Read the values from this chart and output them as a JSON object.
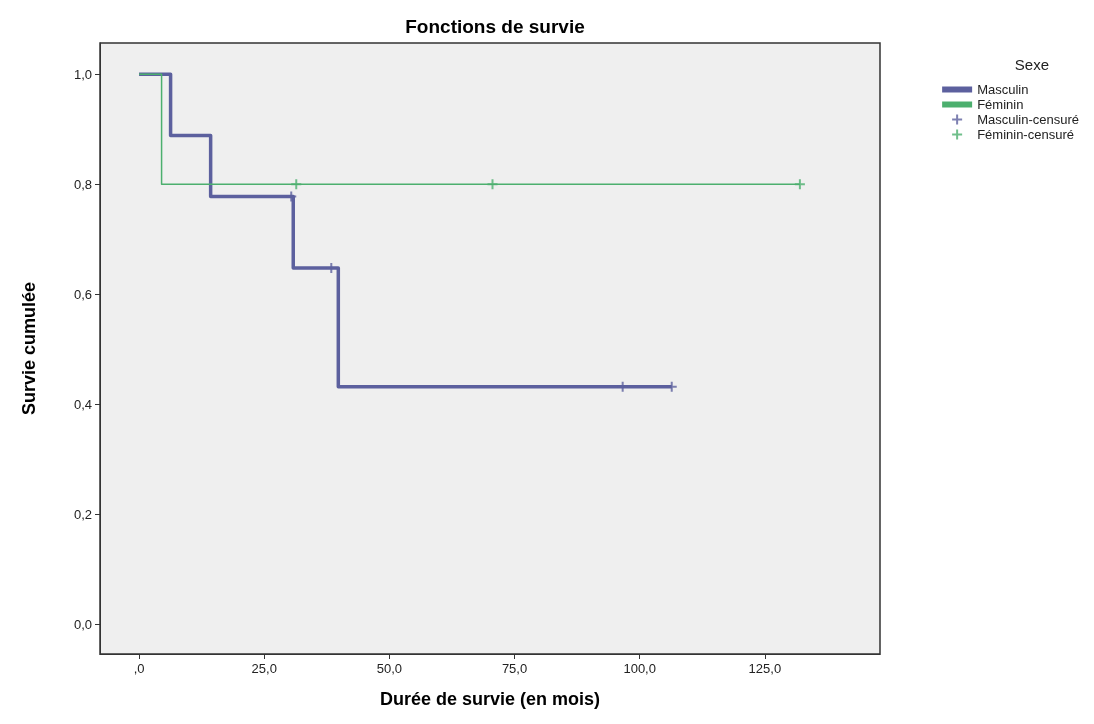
{
  "chart_data": {
    "type": "step",
    "title": "Fonctions de survie",
    "xlabel": "Durée de survie (en mois)",
    "ylabel": "Survie cumulée",
    "legend_title": "Sexe",
    "xlim": [
      -7.8,
      148
    ],
    "xticks": [
      {
        "value": 0,
        "label": ",0"
      },
      {
        "value": 25,
        "label": "25,0"
      },
      {
        "value": 50,
        "label": "50,0"
      },
      {
        "value": 75,
        "label": "75,0"
      },
      {
        "value": 100,
        "label": "100,0"
      },
      {
        "value": 125,
        "label": "125,0"
      }
    ],
    "ylim": [
      -0.054,
      1.057
    ],
    "yticks": [
      {
        "value": 0,
        "label": "0,0"
      },
      {
        "value": 0.2,
        "label": "0,2"
      },
      {
        "value": 0.4,
        "label": "0,4"
      },
      {
        "value": 0.6,
        "label": "0,6"
      },
      {
        "value": 0.8,
        "label": "0,8"
      },
      {
        "value": 1,
        "label": "1,0"
      }
    ],
    "grid": false,
    "legend": "right",
    "series": [
      {
        "name": "Masculin",
        "marker": "none",
        "color": "#5c609e",
        "x": [
          0,
          6.3,
          14.3,
          30.8,
          39.8,
          106.4
        ],
        "values": [
          1,
          0.889,
          0.778,
          0.648,
          0.432,
          0.432
        ]
      },
      {
        "name": "Féminin",
        "marker": "none",
        "color": "#4caf6e",
        "x": [
          0,
          4.5,
          132
        ],
        "values": [
          1,
          0.8,
          0.8
        ]
      },
      {
        "name": "Masculin-censuré",
        "type": "scatter",
        "marker": "cross",
        "color": "#5c609e",
        "x": [
          30.4,
          38.4,
          96.6,
          106.4
        ],
        "values": [
          0.778,
          0.648,
          0.432,
          0.432
        ]
      },
      {
        "name": "Féminin-censuré",
        "type": "scatter",
        "marker": "cross",
        "color": "#4caf6e",
        "x": [
          31.4,
          70.6,
          132
        ],
        "values": [
          0.8,
          0.8,
          0.8
        ]
      }
    ]
  }
}
